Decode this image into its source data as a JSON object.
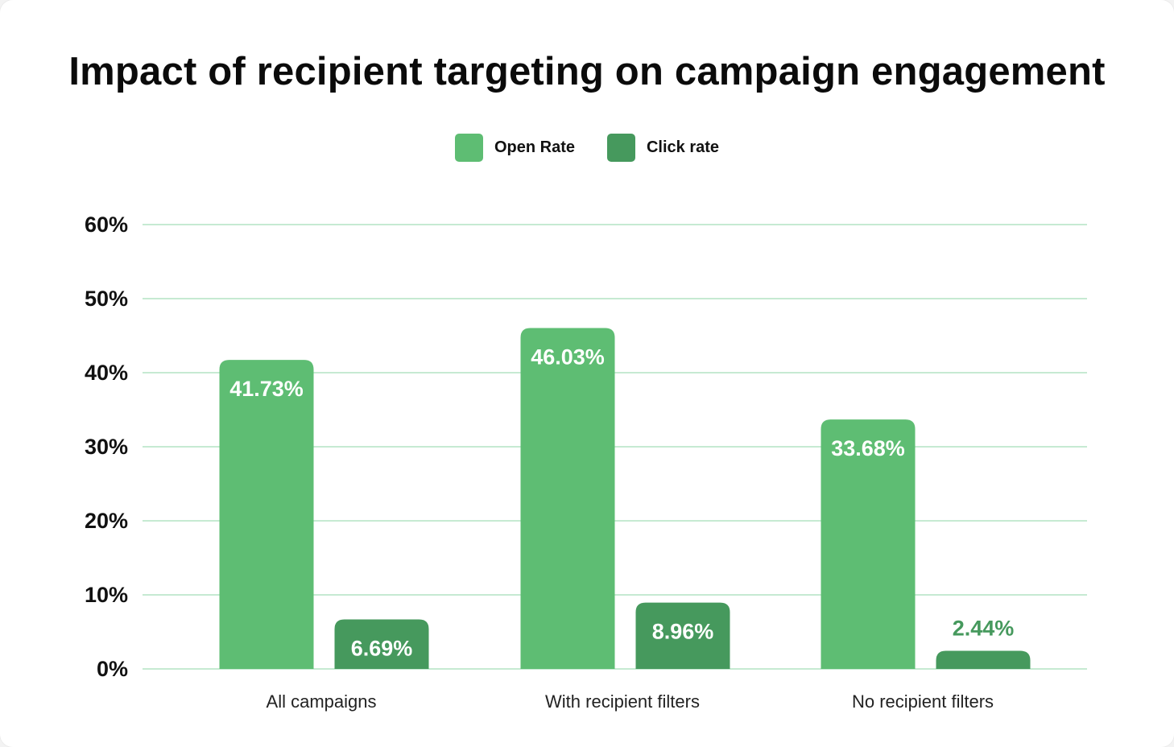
{
  "chart_data": {
    "type": "bar",
    "title": "Impact of recipient targeting on campaign engagement",
    "categories": [
      "All campaigns",
      "With recipient filters",
      "No recipient filters"
    ],
    "series": [
      {
        "name": "Open Rate",
        "color": "#5ebd73",
        "values": [
          41.73,
          46.03,
          33.68
        ],
        "labels": [
          "41.73%",
          "46.03%",
          "33.68%"
        ]
      },
      {
        "name": "Click rate",
        "color": "#46995d",
        "values": [
          6.69,
          8.96,
          2.44
        ],
        "labels": [
          "6.69%",
          "8.96%",
          "2.44%"
        ]
      }
    ],
    "ylim": [
      0,
      60
    ],
    "yticks": [
      0,
      10,
      20,
      30,
      40,
      50,
      60
    ],
    "ytick_labels": [
      "0%",
      "10%",
      "20%",
      "30%",
      "40%",
      "50%",
      "60%"
    ],
    "xlabel": "",
    "ylabel": "",
    "grid": true,
    "gridline_color": "#c6ead2",
    "legend_position": "top-center"
  }
}
